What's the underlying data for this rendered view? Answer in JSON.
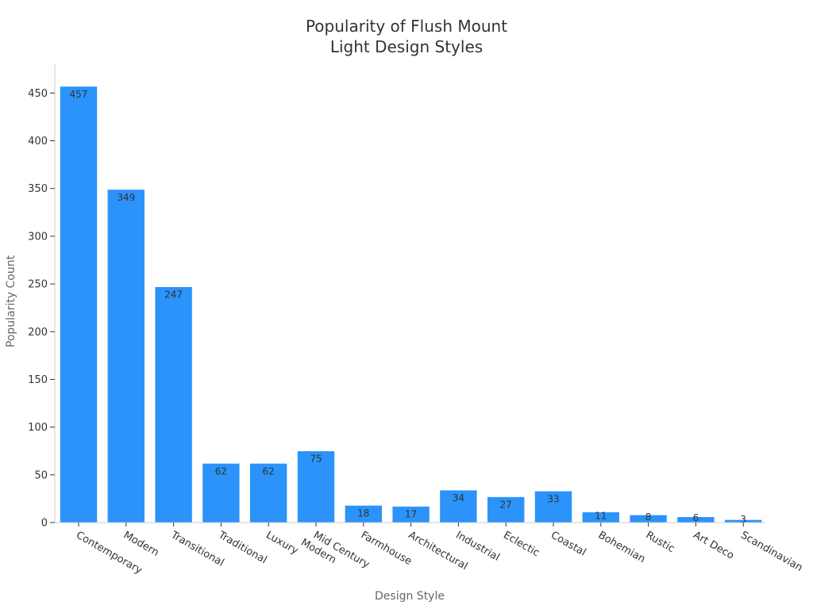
{
  "chart_data": {
    "type": "bar",
    "title_lines": [
      "Popularity of Flush Mount",
      "Light Design Styles"
    ],
    "xlabel": "Design Style",
    "ylabel": "Popularity Count",
    "ylim": [
      0,
      480
    ],
    "yticks": [
      0,
      50,
      100,
      150,
      200,
      250,
      300,
      350,
      400,
      450
    ],
    "grid": false,
    "bar_color": "#2b93fa",
    "categories": [
      [
        "Contemporary"
      ],
      [
        "Modern"
      ],
      [
        "Transitional"
      ],
      [
        "Traditional"
      ],
      [
        "Luxury"
      ],
      [
        "Mid Century",
        "Modern"
      ],
      [
        "Farmhouse"
      ],
      [
        "Architectural"
      ],
      [
        "Industrial"
      ],
      [
        "Eclectic"
      ],
      [
        "Coastal"
      ],
      [
        "Bohemian"
      ],
      [
        "Rustic"
      ],
      [
        "Art Deco"
      ],
      [
        "Scandinavian"
      ]
    ],
    "values": [
      457,
      349,
      247,
      62,
      62,
      75,
      18,
      17,
      34,
      27,
      33,
      11,
      8,
      6,
      3
    ]
  }
}
